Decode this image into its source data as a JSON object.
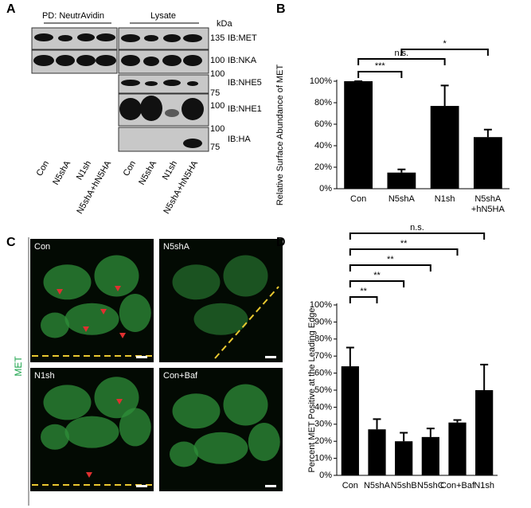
{
  "blot": {
    "panel": "A",
    "pulldown": "PD: NeutrAvidin",
    "lysate": "Lysate",
    "kda": "kDa",
    "markers": [
      135,
      100,
      100,
      75,
      100,
      100,
      75
    ],
    "antibodies": [
      "IB:MET",
      "IB:NKA",
      "IB:NHE5",
      "IB:NHE1",
      "IB:HA"
    ],
    "lanes": [
      "Con",
      "N5shA",
      "N1sh",
      "N5shA+hN5HA"
    ]
  },
  "images": {
    "panel": "C",
    "stain": "MET",
    "labels": [
      "Con",
      "N5shA",
      "N1sh",
      "Con+Baf"
    ]
  },
  "chart_data": [
    {
      "type": "bar",
      "panel": "B",
      "ylabel": "Relative Surface Abundance of MET",
      "categories": [
        "Con",
        "N5shA",
        "N1sh",
        "N5shA +hN5HA"
      ],
      "values": [
        100,
        15,
        77,
        48
      ],
      "errors": [
        0,
        3,
        19,
        7
      ],
      "color": "#000000",
      "ylim": [
        0,
        100
      ],
      "yticks": [
        {
          "value": 0,
          "label": "0%"
        },
        {
          "value": 20,
          "label": "20%"
        },
        {
          "value": 40,
          "label": "40%"
        },
        {
          "value": 60,
          "label": "60%"
        },
        {
          "value": 80,
          "label": "80%"
        },
        {
          "value": 100,
          "label": "100%"
        }
      ],
      "annotations": [
        "n.s.",
        "***",
        "*"
      ]
    },
    {
      "type": "bar",
      "panel": "D",
      "ylabel": "Percent MET Positive at the Leading Edge",
      "categories": [
        "Con",
        "N5shA",
        "N5shB",
        "N5shC",
        "Con+Baf",
        "N1sh"
      ],
      "values": [
        64,
        27,
        20,
        22.5,
        31,
        50
      ],
      "errors": [
        11,
        6,
        5,
        5,
        1.5,
        15
      ],
      "color": "#000000",
      "ylim": [
        0,
        100
      ],
      "yticks": [
        {
          "value": 0,
          "label": "0%"
        },
        {
          "value": 10,
          "label": "10%"
        },
        {
          "value": 20,
          "label": "20%"
        },
        {
          "value": 30,
          "label": "30%"
        },
        {
          "value": 40,
          "label": "40%"
        },
        {
          "value": 50,
          "label": "50%"
        },
        {
          "value": 60,
          "label": "60%"
        },
        {
          "value": 70,
          "label": "70%"
        },
        {
          "value": 80,
          "label": "80%"
        },
        {
          "value": 90,
          "label": "90%"
        },
        {
          "value": 100,
          "label": "100%"
        }
      ],
      "annotations": [
        "**",
        "**",
        "**",
        "**",
        "n.s."
      ]
    }
  ]
}
